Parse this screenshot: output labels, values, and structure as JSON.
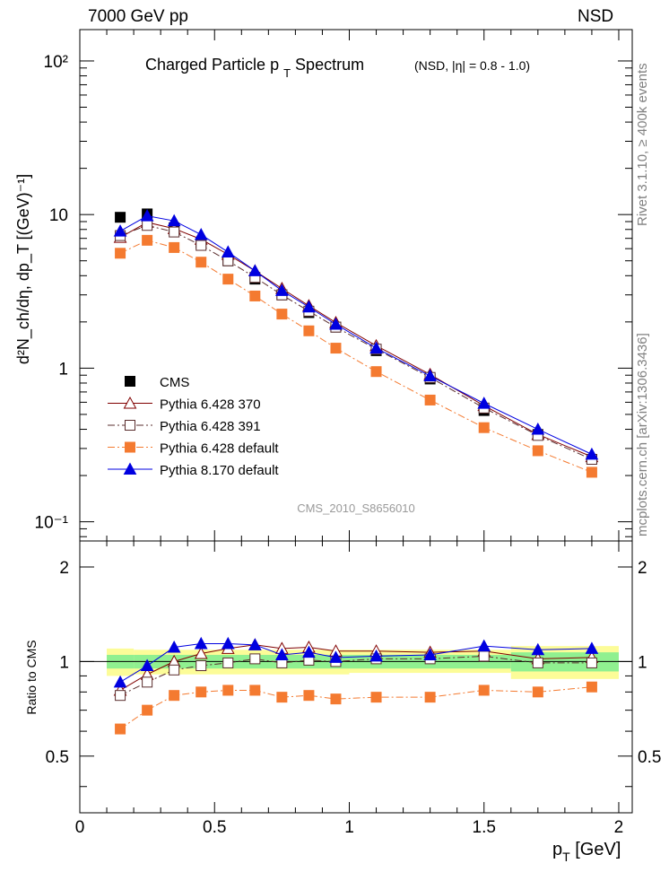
{
  "header": {
    "left": "7000 GeV pp",
    "right": "NSD",
    "side_top": "Rivet 3.1.10, ≥ 400k events",
    "side_bottom": "mcplots.cern.ch [arXiv:1306.3436]"
  },
  "chart_data": [
    {
      "type": "scatter",
      "title": "Charged Particle p",
      "title_sub": "T",
      "title_tail": "Spectrum",
      "title_note": "(NSD, |η| = 0.8 - 1.0)",
      "watermark": "CMS_2010_S8656010",
      "ylabel": "d²N_ch/dη, dp_T [(GeV)⁻¹]",
      "yscale": "log",
      "ylim": [
        0.075,
        160
      ],
      "xlim": [
        0,
        2.05
      ],
      "ytick_labels": [
        "10⁻¹",
        "1",
        "10",
        "10²"
      ],
      "legend_position": "middle-left",
      "series": [
        {
          "name": "CMS",
          "color": "#000000",
          "marker": "filled-square",
          "x": [
            0.15,
            0.25,
            0.35,
            0.45,
            0.55,
            0.65,
            0.75,
            0.85,
            0.95,
            1.1,
            1.3,
            1.5,
            1.7,
            1.9
          ],
          "y": [
            9.6,
            10.1,
            8.2,
            6.5,
            5.0,
            3.8,
            3.0,
            2.3,
            1.85,
            1.3,
            0.85,
            0.53,
            0.37,
            0.255
          ]
        },
        {
          "name": "Pythia 6.428 370",
          "color": "#800000",
          "marker": "open-triangle",
          "line": "solid",
          "x": [
            0.15,
            0.25,
            0.35,
            0.45,
            0.55,
            0.65,
            0.75,
            0.85,
            0.95,
            1.1,
            1.3,
            1.5,
            1.7,
            1.9
          ],
          "y": [
            7.1,
            8.9,
            8.1,
            6.9,
            5.5,
            4.3,
            3.3,
            2.55,
            1.98,
            1.4,
            0.91,
            0.57,
            0.37,
            0.265
          ]
        },
        {
          "name": "Pythia 6.428 391",
          "color": "#5a2d2d",
          "marker": "open-square",
          "line": "dashdot",
          "x": [
            0.15,
            0.25,
            0.35,
            0.45,
            0.55,
            0.65,
            0.75,
            0.85,
            0.95,
            1.1,
            1.3,
            1.5,
            1.7,
            1.9
          ],
          "y": [
            7.3,
            8.5,
            7.7,
            6.3,
            5.0,
            3.9,
            3.0,
            2.35,
            1.85,
            1.33,
            0.87,
            0.55,
            0.365,
            0.255
          ]
        },
        {
          "name": "Pythia 6.428 default",
          "color": "#f47a30",
          "marker": "filled-square",
          "line": "dashdot",
          "x": [
            0.15,
            0.25,
            0.35,
            0.45,
            0.55,
            0.65,
            0.75,
            0.85,
            0.95,
            1.1,
            1.3,
            1.5,
            1.7,
            1.9
          ],
          "y": [
            5.6,
            6.8,
            6.1,
            4.9,
            3.8,
            2.95,
            2.25,
            1.75,
            1.35,
            0.95,
            0.62,
            0.41,
            0.29,
            0.21
          ]
        },
        {
          "name": "Pythia 8.170 default",
          "color": "#0000e0",
          "marker": "filled-triangle",
          "line": "solid",
          "x": [
            0.15,
            0.25,
            0.35,
            0.45,
            0.55,
            0.65,
            0.75,
            0.85,
            0.95,
            1.1,
            1.3,
            1.5,
            1.7,
            1.9
          ],
          "y": [
            7.8,
            9.8,
            9.1,
            7.4,
            5.7,
            4.3,
            3.2,
            2.5,
            1.93,
            1.35,
            0.89,
            0.59,
            0.4,
            0.275
          ]
        }
      ]
    },
    {
      "type": "scatter",
      "ylabel": "Ratio to CMS",
      "xlabel": "p_T [GeV]",
      "xlim": [
        0,
        2.05
      ],
      "ylim": [
        0.33,
        2.42
      ],
      "ytick_labels": [
        "0.5",
        "1",
        "2"
      ],
      "xtick_labels": [
        "0",
        "0.5",
        "1",
        "1.5",
        "2"
      ],
      "bands": {
        "inner_color": "#90f090",
        "outer_color": "#fcfc98",
        "bins": [
          {
            "x0": 0.1,
            "x1": 0.2,
            "inner": [
              0.95,
              1.05
            ],
            "outer": [
              0.9,
              1.1
            ]
          },
          {
            "x0": 0.2,
            "x1": 1.0,
            "inner": [
              0.95,
              1.05
            ],
            "outer": [
              0.91,
              1.09
            ]
          },
          {
            "x0": 1.0,
            "x1": 1.6,
            "inner": [
              0.95,
              1.05
            ],
            "outer": [
              0.92,
              1.09
            ]
          },
          {
            "x0": 1.6,
            "x1": 2.0,
            "inner": [
              0.93,
              1.07
            ],
            "outer": [
              0.88,
              1.12
            ]
          }
        ]
      },
      "series": [
        {
          "name": "Pythia 6.428 370",
          "x": [
            0.15,
            0.25,
            0.35,
            0.45,
            0.55,
            0.65,
            0.75,
            0.85,
            0.95,
            1.1,
            1.3,
            1.5,
            1.7,
            1.9
          ],
          "y": [
            0.81,
            0.91,
            1.0,
            1.06,
            1.1,
            1.13,
            1.1,
            1.11,
            1.08,
            1.08,
            1.07,
            1.08,
            1.02,
            1.03
          ]
        },
        {
          "name": "Pythia 6.428 391",
          "x": [
            0.15,
            0.25,
            0.35,
            0.45,
            0.55,
            0.65,
            0.75,
            0.85,
            0.95,
            1.1,
            1.3,
            1.5,
            1.7,
            1.9
          ],
          "y": [
            0.78,
            0.86,
            0.94,
            0.97,
            0.99,
            1.02,
            0.99,
            1.01,
            1.0,
            1.02,
            1.02,
            1.04,
            0.99,
            0.99
          ]
        },
        {
          "name": "Pythia 6.428 default",
          "x": [
            0.15,
            0.25,
            0.35,
            0.45,
            0.55,
            0.65,
            0.75,
            0.85,
            0.95,
            1.1,
            1.3,
            1.5,
            1.7,
            1.9
          ],
          "y": [
            0.61,
            0.7,
            0.78,
            0.8,
            0.81,
            0.81,
            0.77,
            0.78,
            0.76,
            0.77,
            0.77,
            0.81,
            0.8,
            0.83
          ]
        },
        {
          "name": "Pythia 8.170 default",
          "x": [
            0.15,
            0.25,
            0.35,
            0.45,
            0.55,
            0.65,
            0.75,
            0.85,
            0.95,
            1.1,
            1.3,
            1.5,
            1.7,
            1.9
          ],
          "y": [
            0.86,
            0.97,
            1.11,
            1.14,
            1.14,
            1.13,
            1.05,
            1.07,
            1.03,
            1.04,
            1.05,
            1.12,
            1.09,
            1.1
          ]
        }
      ]
    }
  ]
}
